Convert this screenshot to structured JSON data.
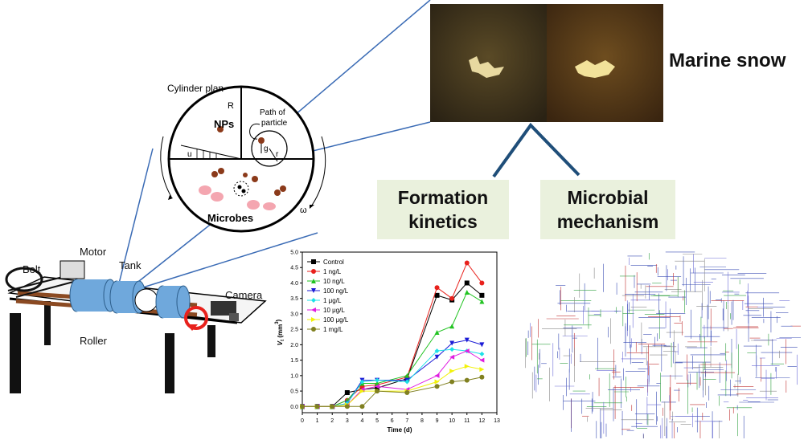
{
  "labels": {
    "marine_snow": "Marine snow",
    "formation_kinetics": "Formation\nkinetics",
    "microbial_mechanism": "Microbial\nmechanism",
    "cylinder_plan": "Cylinder plan",
    "nps": "NPs",
    "microbes": "Microbes",
    "path_of_particle": "Path of\nparticle",
    "R": "R",
    "r": "r",
    "g": "g",
    "u": "u",
    "omega": "ω",
    "belt": "Belt",
    "motor": "Motor",
    "tank": "Tank",
    "camera": "Camera",
    "roller": "Roller"
  },
  "colors": {
    "connector": "#3a6bb5",
    "tree": "#1f4e79",
    "box_fill": "#eaf1dd",
    "roller_wood": "#8b4a22",
    "cylinder": "#6fa8dc"
  },
  "chart_data": {
    "type": "line",
    "xlabel": "Time (d)",
    "ylabel": "V_t (mm³)",
    "ylabel_main": "V",
    "ylabel_sub": "t",
    "ylabel_unit": " (mm",
    "ylabel_sup": "3",
    "ylabel_close": ")",
    "xlim": [
      0,
      13
    ],
    "ylim": [
      -0.2,
      5.0
    ],
    "xticks": [
      "0",
      "1",
      "2",
      "3",
      "4",
      "5",
      "6",
      "7",
      "8",
      "9",
      "10",
      "11",
      "12",
      "13"
    ],
    "yticks": [
      "0.0",
      "0.5",
      "1.0",
      "1.5",
      "2.0",
      "2.5",
      "3.0",
      "3.5",
      "4.0",
      "4.5",
      "5.0"
    ],
    "x": [
      0,
      1,
      2,
      3,
      4,
      5,
      7,
      9,
      10,
      11,
      12
    ],
    "legend_position": "top-left",
    "series": [
      {
        "name": "Control",
        "color": "#000000",
        "marker": "square",
        "values": [
          0,
          0,
          0,
          0.45,
          0.55,
          0.6,
          0.9,
          3.6,
          3.45,
          4.0,
          3.6
        ]
      },
      {
        "name": "1 ng/L",
        "color": "#e8211c",
        "marker": "circle",
        "values": [
          0,
          0,
          0,
          0.2,
          0.65,
          0.7,
          0.95,
          3.85,
          3.5,
          4.65,
          4.0
        ]
      },
      {
        "name": "10 ng/L",
        "color": "#22c322",
        "marker": "triangle",
        "values": [
          0,
          0,
          0,
          0.2,
          0.75,
          0.75,
          1.0,
          2.4,
          2.6,
          3.7,
          3.4
        ]
      },
      {
        "name": "100 ng/L",
        "color": "#1b1bd6",
        "marker": "tri-down",
        "values": [
          0,
          0,
          0,
          0.1,
          0.85,
          0.85,
          0.85,
          1.6,
          2.05,
          2.15,
          2.0
        ]
      },
      {
        "name": "1 μg/L",
        "color": "#1ee0e8",
        "marker": "diamond",
        "values": [
          0,
          0,
          0,
          0.1,
          0.8,
          0.85,
          0.8,
          1.8,
          1.85,
          1.8,
          1.7
        ]
      },
      {
        "name": "10 μg/L",
        "color": "#e01ee0",
        "marker": "tri-left",
        "values": [
          0,
          0,
          0,
          0.05,
          0.55,
          0.65,
          0.55,
          1.0,
          1.6,
          1.8,
          1.5
        ]
      },
      {
        "name": "100 μg/L",
        "color": "#f2f20a",
        "marker": "tri-right",
        "values": [
          0,
          0,
          0,
          0.05,
          0.5,
          0.5,
          0.5,
          0.8,
          1.15,
          1.3,
          1.2
        ]
      },
      {
        "name": "1 mg/L",
        "color": "#808020",
        "marker": "hexagon",
        "values": [
          0,
          0,
          0,
          0,
          0,
          0.5,
          0.45,
          0.65,
          0.8,
          0.85,
          0.95
        ]
      }
    ]
  }
}
